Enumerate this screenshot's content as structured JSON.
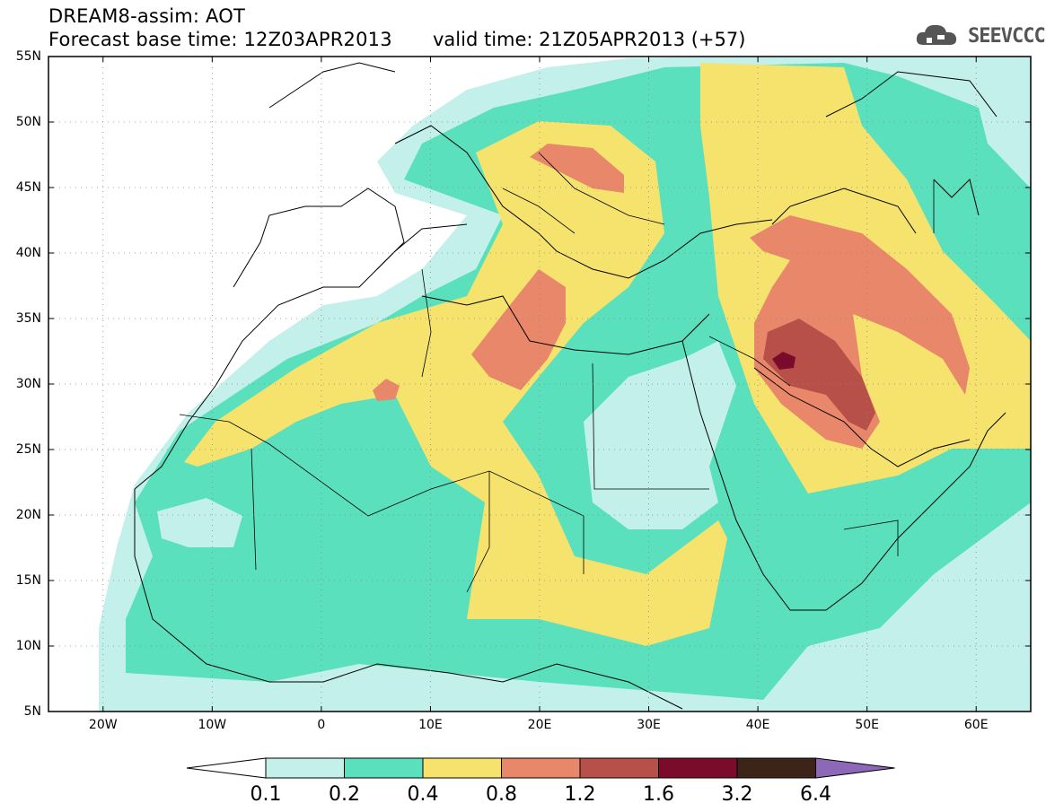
{
  "title": {
    "line1": "DREAM8-assim: AOT",
    "line2": "Forecast base time: 12Z03APR2013",
    "valid": "valid time: 21Z05APR2013 (+57)"
  },
  "logo": {
    "text": "SEEVCCC",
    "icon": "cloud-icon"
  },
  "axes": {
    "lat_labels": [
      "55N",
      "50N",
      "45N",
      "40N",
      "35N",
      "30N",
      "25N",
      "20N",
      "15N",
      "10N",
      "5N"
    ],
    "lon_labels": [
      "20W",
      "10W",
      "0",
      "10E",
      "20E",
      "30E",
      "40E",
      "50E",
      "60E"
    ]
  },
  "colorbar": {
    "labels": [
      "0.1",
      "0.2",
      "0.4",
      "0.8",
      "1.2",
      "1.6",
      "3.2",
      "6.4"
    ],
    "colors": [
      "#ffffff",
      "#c3f0ea",
      "#5ae0bd",
      "#f5e36e",
      "#e8876a",
      "#b8504a",
      "#7b0b2b",
      "#3d2418",
      "#8e68b8"
    ]
  },
  "map": {
    "extent": {
      "lon": [
        -25,
        65
      ],
      "lat": [
        5,
        55
      ]
    },
    "gridlines": "dotted"
  }
}
